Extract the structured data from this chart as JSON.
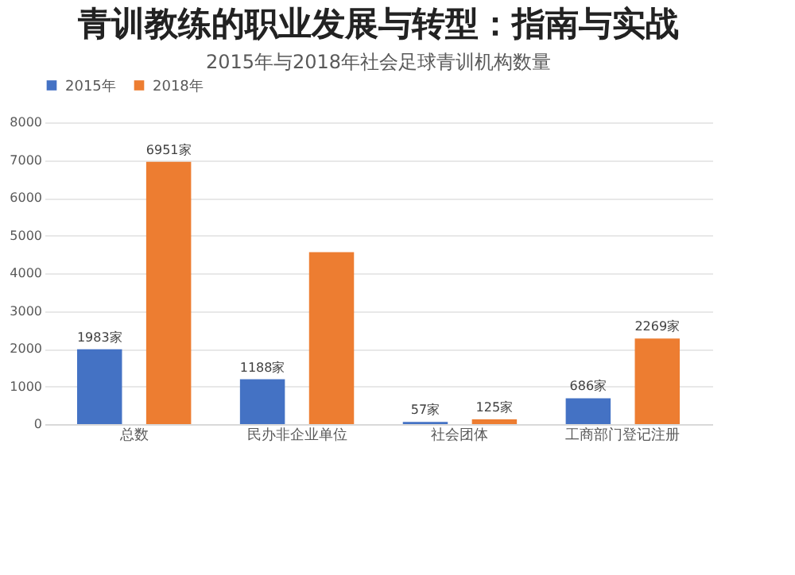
{
  "chart_data": {
    "type": "bar",
    "title": "青训教练的职业发展与转型：指南与实战",
    "subtitle": "2015年与2018年社会足球青训机构数量",
    "categories": [
      "总数",
      "民办非企业单位",
      "社会团体",
      "工商部门登记注册"
    ],
    "series": [
      {
        "name": "2015年",
        "color": "#4472c4",
        "values": [
          1983,
          1188,
          57,
          686
        ],
        "value_labels": [
          "1983家",
          "1188家",
          "57家",
          "686家"
        ]
      },
      {
        "name": "2018年",
        "color": "#ed7d31",
        "values": [
          6951,
          4560,
          125,
          2269
        ],
        "value_labels": [
          "6951家",
          null,
          "125家",
          "2269家"
        ]
      }
    ],
    "ylim": [
      0,
      8000
    ],
    "yticks": [
      0,
      1000,
      2000,
      3000,
      4000,
      5000,
      6000,
      7000,
      8000
    ],
    "grid": "y",
    "legend": "top"
  }
}
